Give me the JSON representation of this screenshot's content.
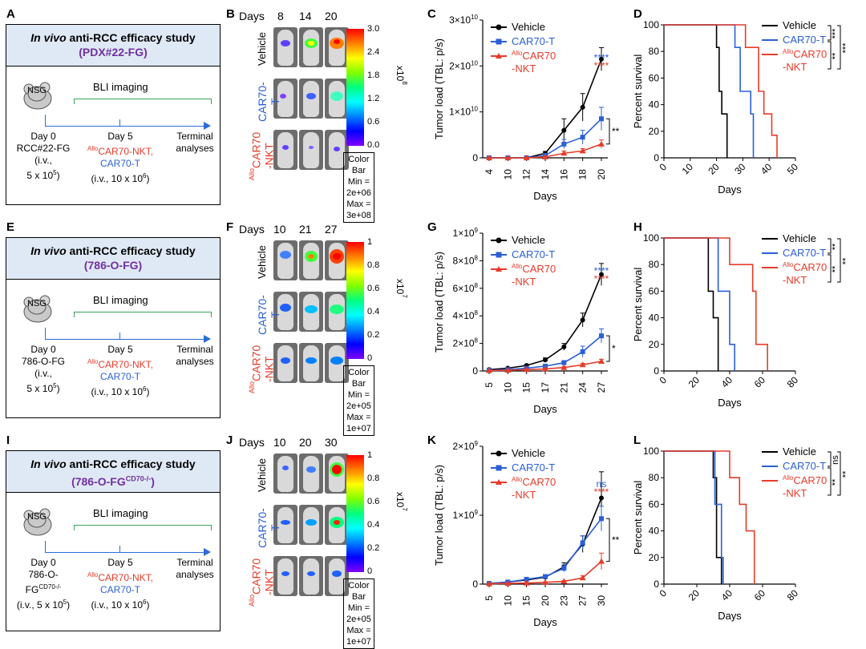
{
  "panels": {
    "A": "A",
    "B": "B",
    "C": "C",
    "D": "D",
    "E": "E",
    "F": "F",
    "G": "G",
    "H": "H",
    "I": "I",
    "J": "J",
    "K": "K",
    "L": "L"
  },
  "study_common": {
    "title_italic": "In vivo",
    "title_rest": " anti-RCC efficacy study",
    "nsg": "NSG",
    "bli": "BLI imaging",
    "day0": "Day 0",
    "day5": "Day 5",
    "terminal1": "Terminal",
    "terminal2": "analyses",
    "alloprefix": "Allo",
    "carnkt": "CAR70-NKT,",
    "cart": "CAR70-T",
    "iv": "(i.v.,",
    "iv10": "(i.v., 10 x 10",
    "exp6": "6",
    "close": ")",
    "five": "5 x 10",
    "exp5": "5"
  },
  "studies": [
    {
      "model": "(PDX#22-FG)",
      "inoculum": "RCC#22-FG"
    },
    {
      "model": "(786-O-FG)",
      "inoculum": "786-O-FG"
    },
    {
      "model_pre": "(786-O-FG",
      "model_sup": "CD70-/-",
      "model_post": ")",
      "inoculum1": "786-O-",
      "inoculum2": "FG",
      "inoculum_sup": "CD70-/-",
      "iv_full": "(i.v., 5 x 10"
    }
  ],
  "bli_panels": [
    {
      "days_label": "Days",
      "days": [
        "8",
        "14",
        "20"
      ],
      "ticks": [
        "3.0",
        "2.4",
        "1.8",
        "1.2",
        "0.6",
        "0.0"
      ],
      "exponent_base": "x10",
      "exponent": "8",
      "cb_title": "Color Bar",
      "cb_min": "Min = 2e+06",
      "cb_max": "Max = 3e+08"
    },
    {
      "days_label": "Days",
      "days": [
        "10",
        "21",
        "27"
      ],
      "ticks": [
        "1",
        "0.8",
        "0.6",
        "0.4",
        "0.2",
        "0"
      ],
      "exponent_base": "x10",
      "exponent": "7",
      "cb_title": "Color Bar",
      "cb_min": "Min = 2e+05",
      "cb_max": "Max = 1e+07"
    },
    {
      "days_label": "Days",
      "days": [
        "10",
        "20",
        "30"
      ],
      "ticks": [
        "1",
        "0.8",
        "0.6",
        "0.4",
        "0.2",
        "0"
      ],
      "exponent_base": "x10",
      "exponent": "7",
      "cb_title": "Color Bar",
      "cb_min": "Min = 2e+05",
      "cb_max": "Max = 1e+07"
    }
  ],
  "row_labels": {
    "vehicle": "Vehicle",
    "cart": "CAR70-T",
    "allo_sup": "Allo",
    "allo_a": "CAR70",
    "allo_b": "-NKT"
  },
  "legend": {
    "vehicle": "Vehicle",
    "cart": "CAR70-T",
    "allo_sup": "Allo",
    "allo_a": "CAR70",
    "allo_b": "-NKT"
  },
  "colors": {
    "vehicle": "#000000",
    "cart": "#2b5fd6",
    "allo": "#e63c2a",
    "header_bg": "#dfe9f5",
    "model": "#7030a0",
    "timeline": "#2b6cd6",
    "bracket": "#3aa35a"
  },
  "chart_data": [
    {
      "id": "C",
      "type": "line",
      "xlabel": "Days",
      "ylabel": "Tumor load (TBL: p/s)",
      "categories": [
        "4",
        "10",
        "12",
        "14",
        "16",
        "18",
        "20"
      ],
      "ylim": [
        0,
        30000000000
      ],
      "yticks": [
        {
          "v": 0,
          "base": "0",
          "exp": ""
        },
        {
          "v": 10000000000,
          "base": "1×10",
          "exp": "10"
        },
        {
          "v": 20000000000,
          "base": "2×10",
          "exp": "10"
        },
        {
          "v": 30000000000,
          "base": "3×10",
          "exp": "10"
        }
      ],
      "series": [
        {
          "name": "Vehicle",
          "key": "vehicle",
          "values": [
            0,
            0,
            0,
            1000000000,
            6000000000,
            11000000000,
            21500000000
          ],
          "errors": [
            0,
            0,
            0,
            400000000,
            2500000000,
            3000000000,
            2500000000
          ]
        },
        {
          "name": "CAR70-T",
          "key": "cart",
          "values": [
            0,
            0,
            0,
            500000000,
            3000000000,
            4500000000,
            8500000000
          ],
          "errors": [
            0,
            0,
            0,
            200000000,
            1000000000,
            1500000000,
            2500000000
          ]
        },
        {
          "name": "AlloCAR70-NKT",
          "key": "allo",
          "values": [
            0,
            0,
            0,
            200000000,
            1000000000,
            1500000000,
            3000000000
          ],
          "errors": [
            0,
            0,
            0,
            100000000,
            500000000,
            500000000,
            900000000
          ]
        }
      ],
      "sig_top": [
        {
          "text": "****",
          "key": "cart"
        },
        {
          "text": "****",
          "key": "allo"
        }
      ],
      "sig_side": "**"
    },
    {
      "id": "G",
      "type": "line",
      "xlabel": "Days",
      "ylabel": "Tumor load (TBL: p/s)",
      "categories": [
        "5",
        "10",
        "15",
        "17",
        "21",
        "24",
        "27"
      ],
      "ylim": [
        0,
        1000000000
      ],
      "yticks": [
        {
          "v": 0,
          "base": "0",
          "exp": ""
        },
        {
          "v": 200000000,
          "base": "2×10",
          "exp": "8"
        },
        {
          "v": 400000000,
          "base": "4×10",
          "exp": "8"
        },
        {
          "v": 600000000,
          "base": "6×10",
          "exp": "8"
        },
        {
          "v": 800000000,
          "base": "8×10",
          "exp": "8"
        },
        {
          "v": 1000000000,
          "base": "1×10",
          "exp": "9"
        }
      ],
      "series": [
        {
          "name": "Vehicle",
          "key": "vehicle",
          "values": [
            10000000,
            20000000,
            40000000,
            80000000,
            175000000,
            370000000,
            700000000
          ],
          "errors": [
            3000000,
            5000000,
            8000000,
            15000000,
            25000000,
            50000000,
            80000000
          ]
        },
        {
          "name": "CAR70-T",
          "key": "cart",
          "values": [
            5000000,
            10000000,
            20000000,
            35000000,
            60000000,
            140000000,
            255000000
          ],
          "errors": [
            2000000,
            3000000,
            5000000,
            8000000,
            15000000,
            40000000,
            50000000
          ]
        },
        {
          "name": "AlloCAR70-NKT",
          "key": "allo",
          "values": [
            3000000,
            5000000,
            10000000,
            15000000,
            25000000,
            45000000,
            70000000
          ],
          "errors": [
            1000000,
            2000000,
            3000000,
            4000000,
            6000000,
            10000000,
            15000000
          ]
        }
      ],
      "sig_top": [
        {
          "text": "****",
          "key": "cart"
        },
        {
          "text": "****",
          "key": "allo"
        }
      ],
      "sig_side": "*"
    },
    {
      "id": "K",
      "type": "line",
      "xlabel": "Days",
      "ylabel": "Tumor load (TBL: p/s)",
      "categories": [
        "5",
        "10",
        "15",
        "20",
        "23",
        "27",
        "30"
      ],
      "ylim": [
        0,
        2000000000
      ],
      "yticks": [
        {
          "v": 0,
          "base": "0",
          "exp": ""
        },
        {
          "v": 1000000000,
          "base": "1×10",
          "exp": "9"
        },
        {
          "v": 2000000000,
          "base": "2×10",
          "exp": "9"
        }
      ],
      "series": [
        {
          "name": "Vehicle",
          "key": "vehicle",
          "values": [
            10000000,
            30000000,
            60000000,
            100000000,
            250000000,
            580000000,
            1250000000
          ],
          "errors": [
            5000000,
            10000000,
            15000000,
            25000000,
            60000000,
            120000000,
            380000000
          ]
        },
        {
          "name": "CAR70-T",
          "key": "cart",
          "values": [
            10000000,
            30000000,
            70000000,
            110000000,
            230000000,
            600000000,
            950000000
          ],
          "errors": [
            5000000,
            10000000,
            15000000,
            25000000,
            50000000,
            100000000,
            180000000
          ]
        },
        {
          "name": "AlloCAR70-NKT",
          "key": "allo",
          "values": [
            5000000,
            10000000,
            15000000,
            25000000,
            40000000,
            90000000,
            330000000
          ],
          "errors": [
            2000000,
            4000000,
            5000000,
            8000000,
            10000000,
            30000000,
            120000000
          ]
        }
      ],
      "sig_top": [
        {
          "text": "ns",
          "key": "cart"
        },
        {
          "text": "****",
          "key": "allo"
        }
      ],
      "sig_side": "**"
    },
    {
      "id": "D",
      "type": "line",
      "xlabel": "Days",
      "ylabel": "Percent survival",
      "xlim": [
        0,
        50
      ],
      "xticks": [
        "0",
        "10",
        "20",
        "30",
        "40",
        "50"
      ],
      "ylim": [
        0,
        100
      ],
      "yticks": [
        "0",
        "20",
        "40",
        "60",
        "80",
        "100"
      ],
      "series": [
        {
          "name": "Vehicle",
          "key": "vehicle",
          "steps": [
            [
              0,
              100
            ],
            [
              20,
              100
            ],
            [
              20,
              83
            ],
            [
              21,
              83
            ],
            [
              21,
              50
            ],
            [
              22,
              50
            ],
            [
              22,
              33
            ],
            [
              24,
              33
            ],
            [
              24,
              0
            ]
          ]
        },
        {
          "name": "CAR70-T",
          "key": "cart",
          "steps": [
            [
              0,
              100
            ],
            [
              27,
              100
            ],
            [
              27,
              83
            ],
            [
              29,
              83
            ],
            [
              29,
              50
            ],
            [
              33,
              50
            ],
            [
              33,
              33
            ],
            [
              34,
              33
            ],
            [
              34,
              0
            ]
          ]
        },
        {
          "name": "AlloCAR70-NKT",
          "key": "allo",
          "steps": [
            [
              0,
              100
            ],
            [
              31,
              100
            ],
            [
              31,
              83
            ],
            [
              36,
              83
            ],
            [
              36,
              50
            ],
            [
              38,
              50
            ],
            [
              38,
              33
            ],
            [
              41,
              33
            ],
            [
              41,
              17
            ],
            [
              43,
              17
            ],
            [
              43,
              0
            ]
          ]
        }
      ],
      "sig": [
        "***",
        "***",
        "**"
      ]
    },
    {
      "id": "H",
      "type": "line",
      "xlabel": "Days",
      "ylabel": "Percent survival",
      "xlim": [
        0,
        80
      ],
      "xticks": [
        "0",
        "20",
        "40",
        "60",
        "80"
      ],
      "ylim": [
        0,
        100
      ],
      "yticks": [
        "0",
        "20",
        "40",
        "60",
        "80",
        "100"
      ],
      "series": [
        {
          "name": "Vehicle",
          "key": "vehicle",
          "steps": [
            [
              0,
              100
            ],
            [
              27,
              100
            ],
            [
              27,
              60
            ],
            [
              30,
              60
            ],
            [
              30,
              40
            ],
            [
              33,
              40
            ],
            [
              33,
              0
            ]
          ]
        },
        {
          "name": "CAR70-T",
          "key": "cart",
          "steps": [
            [
              0,
              100
            ],
            [
              33,
              100
            ],
            [
              33,
              60
            ],
            [
              40,
              60
            ],
            [
              40,
              20
            ],
            [
              43,
              20
            ],
            [
              43,
              0
            ]
          ]
        },
        {
          "name": "AlloCAR70-NKT",
          "key": "allo",
          "steps": [
            [
              0,
              100
            ],
            [
              40,
              100
            ],
            [
              40,
              80
            ],
            [
              54,
              80
            ],
            [
              54,
              60
            ],
            [
              56,
              60
            ],
            [
              56,
              20
            ],
            [
              63,
              20
            ],
            [
              63,
              0
            ]
          ]
        }
      ],
      "sig": [
        "**",
        "**",
        "**"
      ]
    },
    {
      "id": "L",
      "type": "line",
      "xlabel": "Days",
      "ylabel": "Percent survival",
      "xlim": [
        0,
        80
      ],
      "xticks": [
        "0",
        "20",
        "40",
        "60",
        "80"
      ],
      "ylim": [
        0,
        100
      ],
      "yticks": [
        "0",
        "20",
        "40",
        "60",
        "80",
        "100"
      ],
      "series": [
        {
          "name": "Vehicle",
          "key": "vehicle",
          "steps": [
            [
              0,
              100
            ],
            [
              30,
              100
            ],
            [
              30,
              80
            ],
            [
              32,
              80
            ],
            [
              32,
              20
            ],
            [
              35,
              20
            ],
            [
              35,
              0
            ]
          ]
        },
        {
          "name": "CAR70-T",
          "key": "cart",
          "steps": [
            [
              0,
              100
            ],
            [
              31,
              100
            ],
            [
              31,
              60
            ],
            [
              35,
              60
            ],
            [
              35,
              20
            ],
            [
              36,
              20
            ],
            [
              36,
              0
            ]
          ]
        },
        {
          "name": "AlloCAR70-NKT",
          "key": "allo",
          "steps": [
            [
              0,
              100
            ],
            [
              40,
              100
            ],
            [
              40,
              80
            ],
            [
              46,
              80
            ],
            [
              46,
              60
            ],
            [
              50,
              60
            ],
            [
              50,
              40
            ],
            [
              55,
              40
            ],
            [
              55,
              0
            ]
          ]
        }
      ],
      "sig": [
        "ns",
        "**",
        "**"
      ]
    }
  ]
}
